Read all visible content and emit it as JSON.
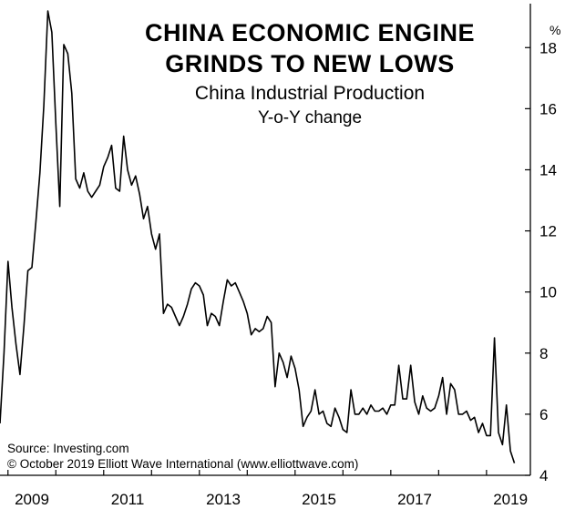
{
  "chart_data": {
    "type": "line",
    "title_lines": [
      "CHINA ECONOMIC ENGINE",
      "GRINDS TO NEW LOWS"
    ],
    "subtitle": "China Industrial Production",
    "subtitle2": "Y-o-Y change",
    "ylabel_unit": "%",
    "ylim": [
      4,
      19.2
    ],
    "yticks": [
      4,
      6,
      8,
      10,
      12,
      14,
      16,
      18
    ],
    "xlim": [
      "2008-11",
      "2019-12"
    ],
    "xticks": [
      "2009",
      "2011",
      "2013",
      "2015",
      "2017",
      "2019"
    ],
    "grid": false,
    "series": [
      {
        "color": "#000000",
        "points": [
          [
            "2008-11",
            5.7
          ],
          [
            "2008-12",
            8.0
          ],
          [
            "2009-01",
            11.0
          ],
          [
            "2009-02",
            9.5
          ],
          [
            "2009-03",
            8.3
          ],
          [
            "2009-04",
            7.3
          ],
          [
            "2009-05",
            8.9
          ],
          [
            "2009-06",
            10.7
          ],
          [
            "2009-07",
            10.8
          ],
          [
            "2009-08",
            12.3
          ],
          [
            "2009-09",
            13.9
          ],
          [
            "2009-10",
            16.1
          ],
          [
            "2009-11",
            19.2
          ],
          [
            "2009-12",
            18.5
          ],
          [
            "2010-01",
            15.5
          ],
          [
            "2010-02",
            12.8
          ],
          [
            "2010-03",
            18.1
          ],
          [
            "2010-04",
            17.8
          ],
          [
            "2010-05",
            16.5
          ],
          [
            "2010-06",
            13.7
          ],
          [
            "2010-07",
            13.4
          ],
          [
            "2010-08",
            13.9
          ],
          [
            "2010-09",
            13.3
          ],
          [
            "2010-10",
            13.1
          ],
          [
            "2010-11",
            13.3
          ],
          [
            "2010-12",
            13.5
          ],
          [
            "2011-01",
            14.1
          ],
          [
            "2011-02",
            14.4
          ],
          [
            "2011-03",
            14.8
          ],
          [
            "2011-04",
            13.4
          ],
          [
            "2011-05",
            13.3
          ],
          [
            "2011-06",
            15.1
          ],
          [
            "2011-07",
            14.0
          ],
          [
            "2011-08",
            13.5
          ],
          [
            "2011-09",
            13.8
          ],
          [
            "2011-10",
            13.2
          ],
          [
            "2011-11",
            12.4
          ],
          [
            "2011-12",
            12.8
          ],
          [
            "2012-01",
            11.9
          ],
          [
            "2012-02",
            11.4
          ],
          [
            "2012-03",
            11.9
          ],
          [
            "2012-04",
            9.3
          ],
          [
            "2012-05",
            9.6
          ],
          [
            "2012-06",
            9.5
          ],
          [
            "2012-07",
            9.2
          ],
          [
            "2012-08",
            8.9
          ],
          [
            "2012-09",
            9.2
          ],
          [
            "2012-10",
            9.6
          ],
          [
            "2012-11",
            10.1
          ],
          [
            "2012-12",
            10.3
          ],
          [
            "2013-01",
            10.2
          ],
          [
            "2013-02",
            9.9
          ],
          [
            "2013-03",
            8.9
          ],
          [
            "2013-04",
            9.3
          ],
          [
            "2013-05",
            9.2
          ],
          [
            "2013-06",
            8.9
          ],
          [
            "2013-07",
            9.7
          ],
          [
            "2013-08",
            10.4
          ],
          [
            "2013-09",
            10.2
          ],
          [
            "2013-10",
            10.3
          ],
          [
            "2013-11",
            10.0
          ],
          [
            "2013-12",
            9.7
          ],
          [
            "2014-01",
            9.3
          ],
          [
            "2014-02",
            8.6
          ],
          [
            "2014-03",
            8.8
          ],
          [
            "2014-04",
            8.7
          ],
          [
            "2014-05",
            8.8
          ],
          [
            "2014-06",
            9.2
          ],
          [
            "2014-07",
            9.0
          ],
          [
            "2014-08",
            6.9
          ],
          [
            "2014-09",
            8.0
          ],
          [
            "2014-10",
            7.7
          ],
          [
            "2014-11",
            7.2
          ],
          [
            "2014-12",
            7.9
          ],
          [
            "2015-01",
            7.5
          ],
          [
            "2015-02",
            6.8
          ],
          [
            "2015-03",
            5.6
          ],
          [
            "2015-04",
            5.9
          ],
          [
            "2015-05",
            6.1
          ],
          [
            "2015-06",
            6.8
          ],
          [
            "2015-07",
            6.0
          ],
          [
            "2015-08",
            6.1
          ],
          [
            "2015-09",
            5.7
          ],
          [
            "2015-10",
            5.6
          ],
          [
            "2015-11",
            6.2
          ],
          [
            "2015-12",
            5.9
          ],
          [
            "2016-01",
            5.5
          ],
          [
            "2016-02",
            5.4
          ],
          [
            "2016-03",
            6.8
          ],
          [
            "2016-04",
            6.0
          ],
          [
            "2016-05",
            6.0
          ],
          [
            "2016-06",
            6.2
          ],
          [
            "2016-07",
            6.0
          ],
          [
            "2016-08",
            6.3
          ],
          [
            "2016-09",
            6.1
          ],
          [
            "2016-10",
            6.1
          ],
          [
            "2016-11",
            6.2
          ],
          [
            "2016-12",
            6.0
          ],
          [
            "2017-01",
            6.3
          ],
          [
            "2017-02",
            6.3
          ],
          [
            "2017-03",
            7.6
          ],
          [
            "2017-04",
            6.5
          ],
          [
            "2017-05",
            6.5
          ],
          [
            "2017-06",
            7.6
          ],
          [
            "2017-07",
            6.4
          ],
          [
            "2017-08",
            6.0
          ],
          [
            "2017-09",
            6.6
          ],
          [
            "2017-10",
            6.2
          ],
          [
            "2017-11",
            6.1
          ],
          [
            "2017-12",
            6.2
          ],
          [
            "2018-01",
            6.6
          ],
          [
            "2018-02",
            7.2
          ],
          [
            "2018-03",
            6.0
          ],
          [
            "2018-04",
            7.0
          ],
          [
            "2018-05",
            6.8
          ],
          [
            "2018-06",
            6.0
          ],
          [
            "2018-07",
            6.0
          ],
          [
            "2018-08",
            6.1
          ],
          [
            "2018-09",
            5.8
          ],
          [
            "2018-10",
            5.9
          ],
          [
            "2018-11",
            5.4
          ],
          [
            "2018-12",
            5.7
          ],
          [
            "2019-01",
            5.3
          ],
          [
            "2019-02",
            5.3
          ],
          [
            "2019-03",
            8.5
          ],
          [
            "2019-04",
            5.4
          ],
          [
            "2019-05",
            5.0
          ],
          [
            "2019-06",
            6.3
          ],
          [
            "2019-07",
            4.8
          ],
          [
            "2019-08",
            4.4
          ]
        ]
      }
    ]
  },
  "source_note": "Source: Investing.com",
  "copyright_note": "© October 2019 Elliott Wave International (www.elliottwave.com)"
}
